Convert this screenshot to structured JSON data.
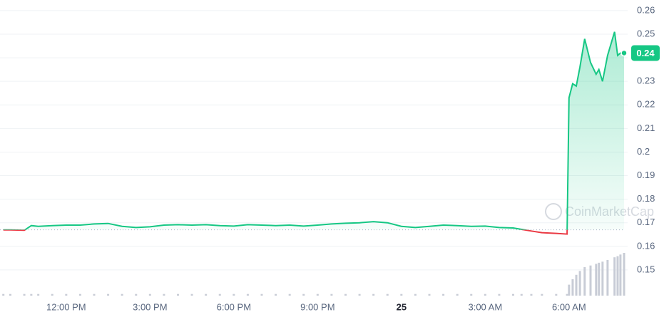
{
  "chart_data": {
    "type": "line",
    "x": [
      9.75,
      10.0,
      10.5,
      10.75,
      11.0,
      11.5,
      12.0,
      12.5,
      13.0,
      13.5,
      14.0,
      14.5,
      15.0,
      15.5,
      16.0,
      16.5,
      17.0,
      17.5,
      18.0,
      18.5,
      19.0,
      19.5,
      20.0,
      20.5,
      21.0,
      21.5,
      22.0,
      22.5,
      23.0,
      23.5,
      24.0,
      24.5,
      25.0,
      25.5,
      26.0,
      26.5,
      27.0,
      27.5,
      28.0,
      28.3,
      28.65,
      29.03,
      29.54,
      29.93,
      30.0,
      30.13,
      30.26,
      30.39,
      30.56,
      30.77,
      30.97,
      31.07,
      31.2,
      31.38,
      31.63,
      31.74,
      31.84,
      31.97
    ],
    "series": [
      {
        "name": "Price",
        "color": "#16c784",
        "below_color": "#ea3943",
        "values": [
          0.167,
          0.167,
          0.1668,
          0.1688,
          0.1685,
          0.1688,
          0.169,
          0.169,
          0.1695,
          0.1697,
          0.1685,
          0.168,
          0.1683,
          0.169,
          0.1692,
          0.169,
          0.1692,
          0.1688,
          0.1686,
          0.1692,
          0.169,
          0.1688,
          0.169,
          0.1686,
          0.169,
          0.1695,
          0.1698,
          0.17,
          0.1705,
          0.17,
          0.1685,
          0.168,
          0.1685,
          0.169,
          0.1688,
          0.1685,
          0.1686,
          0.168,
          0.1678,
          0.1672,
          0.1665,
          0.1658,
          0.1655,
          0.1652,
          0.223,
          0.229,
          0.228,
          0.236,
          0.248,
          0.238,
          0.233,
          0.235,
          0.23,
          0.241,
          0.251,
          0.241,
          0.242,
          0.242
        ]
      },
      {
        "name": "Volume",
        "color": "#c8ccd6",
        "values": [
          3,
          3,
          3,
          3,
          3,
          3,
          3,
          3,
          3,
          3,
          3,
          3,
          3,
          3,
          3,
          3,
          3,
          3,
          3,
          3,
          3,
          3,
          3,
          3,
          3,
          3,
          3,
          3,
          3,
          3,
          3,
          3,
          3,
          3,
          3,
          3,
          3,
          3,
          3,
          3,
          3,
          3,
          3,
          3,
          20,
          30,
          38,
          45,
          52,
          55,
          58,
          60,
          62,
          65,
          70,
          72,
          75,
          78
        ]
      }
    ],
    "reference_value": 0.167,
    "current_price": {
      "value": 0.242,
      "label": "0.24"
    },
    "watermark": "CoinMarketCap",
    "xlim": [
      9.63,
      31.97
    ],
    "xticks": [
      {
        "value": 12,
        "label": "12:00 PM"
      },
      {
        "value": 15,
        "label": "3:00 PM"
      },
      {
        "value": 18,
        "label": "6:00 PM"
      },
      {
        "value": 21,
        "label": "9:00 PM"
      },
      {
        "value": 24,
        "label": "25"
      },
      {
        "value": 27,
        "label": "3:00 AM"
      },
      {
        "value": 30,
        "label": "6:00 AM"
      }
    ],
    "ylim": [
      0.1391,
      0.2645
    ],
    "yticks": [
      0.15,
      0.16,
      0.17,
      0.18,
      0.19,
      0.2,
      0.21,
      0.22,
      0.23,
      0.24,
      0.25,
      0.26
    ],
    "grid": true
  }
}
